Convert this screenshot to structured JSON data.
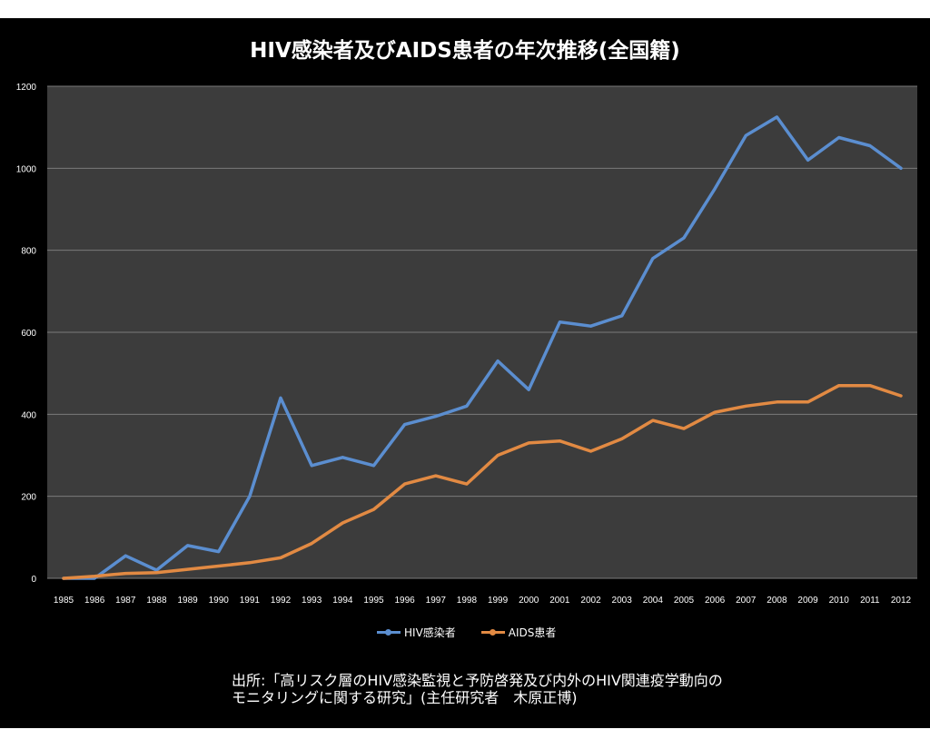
{
  "chart_data": {
    "type": "line",
    "title": "HIV感染者及びAIDS患者の年次推移(全国籍)",
    "xlabel": "",
    "ylabel": "",
    "ylim": [
      0,
      1200
    ],
    "yticks": [
      "0",
      "200",
      "400",
      "600",
      "800",
      "1000",
      "1200"
    ],
    "categories": [
      "1985",
      "1986",
      "1987",
      "1988",
      "1989",
      "1990",
      "1991",
      "1992",
      "1993",
      "1994",
      "1995",
      "1996",
      "1997",
      "1998",
      "1999",
      "2000",
      "2001",
      "2002",
      "2003",
      "2004",
      "2005",
      "2006",
      "2007",
      "2008",
      "2009",
      "2010",
      "2011",
      "2012"
    ],
    "series": [
      {
        "name": "HIV感染者",
        "color": "#5b8ed0",
        "values": [
          0,
          0,
          55,
          20,
          80,
          65,
          200,
          440,
          275,
          295,
          275,
          375,
          395,
          420,
          530,
          460,
          625,
          615,
          640,
          780,
          830,
          950,
          1080,
          1125,
          1020,
          1075,
          1055,
          1000
        ]
      },
      {
        "name": "AIDS患者",
        "color": "#e28a43",
        "values": [
          0,
          5,
          12,
          14,
          22,
          30,
          38,
          50,
          85,
          135,
          168,
          230,
          250,
          230,
          300,
          330,
          335,
          310,
          340,
          385,
          365,
          405,
          420,
          430,
          430,
          470,
          470,
          445
        ]
      }
    ],
    "legend_position": "bottom",
    "grid": true
  },
  "colors": {
    "plot_background": "#3c3c3c",
    "gridline": "#7a7a7a",
    "frame": "#000000"
  },
  "source_note": "出所:「高リスク層のHIV感染監視と予防啓発及び内外のHIV関連疫学動向の\nモニタリングに関する研究」(主任研究者　木原正博)"
}
